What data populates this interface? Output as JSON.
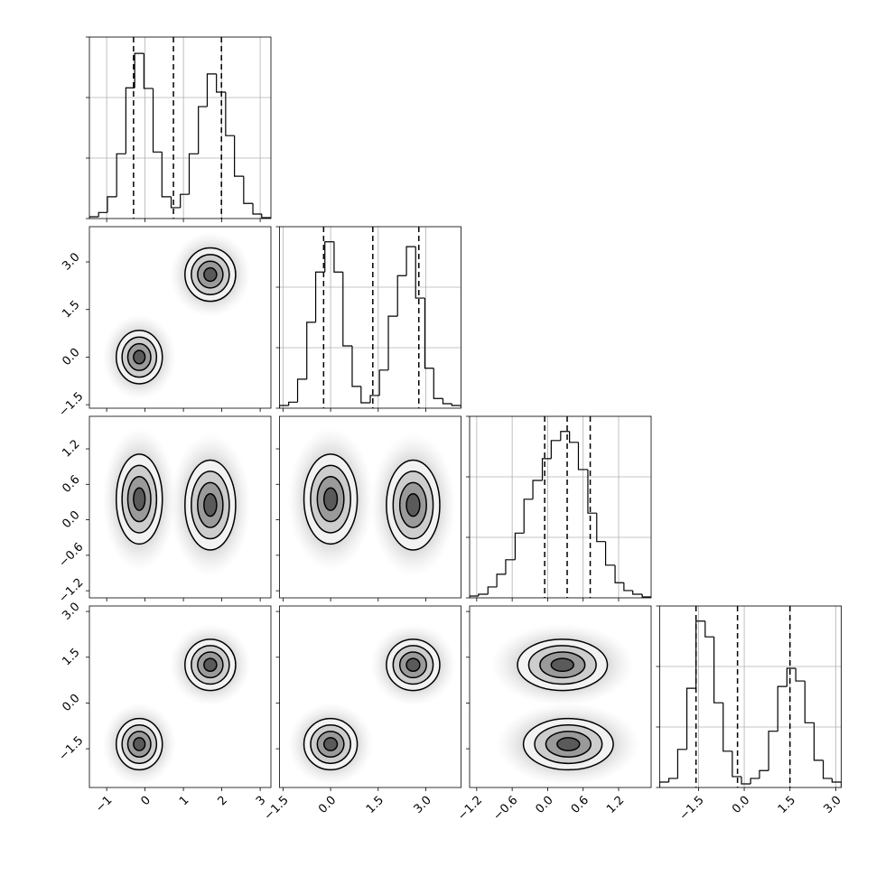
{
  "chart_data": {
    "type": "corner",
    "hist_ylim": [
      0,
      3000
    ],
    "hist_yticks": [
      0,
      1000,
      2000,
      3000
    ],
    "grid": true,
    "levels": [
      0.5,
      1,
      1.5,
      2
    ],
    "components": [
      {
        "mean": [
          -0.15,
          0.0,
          0.35,
          -1.35
        ],
        "sigma": [
          0.3,
          0.42,
          0.38,
          0.42
        ]
      },
      {
        "mean": [
          1.7,
          2.6,
          0.25,
          1.25
        ],
        "sigma": [
          0.33,
          0.42,
          0.38,
          0.42
        ]
      }
    ],
    "params": [
      {
        "lim": [
          -1.45,
          3.28
        ],
        "ticks": [
          {
            "value": -1,
            "label": "−1"
          },
          0,
          1,
          2,
          3
        ],
        "quantiles": [
          -0.3,
          0.74,
          1.99
        ],
        "bins": [
          -1.45,
          -1.21,
          -0.98,
          -0.74,
          -0.5,
          -0.27,
          -0.03,
          0.21,
          0.44,
          0.68,
          0.92,
          1.15,
          1.39,
          1.62,
          1.86,
          2.1,
          2.33,
          2.57,
          2.81,
          3.04,
          3.28
        ],
        "counts": [
          30,
          100,
          360,
          1070,
          2160,
          2730,
          2150,
          1100,
          360,
          180,
          400,
          1070,
          1850,
          2390,
          2090,
          1370,
          700,
          250,
          75,
          15
        ]
      },
      {
        "lim": [
          -1.61,
          4.11
        ],
        "ticks": [
          {
            "value": -1.5,
            "label": "−1.5"
          },
          {
            "value": 0,
            "label": "0.0"
          },
          1.5,
          {
            "value": 3,
            "label": "3.0"
          }
        ],
        "quantiles": [
          -0.22,
          1.33,
          2.78
        ],
        "bins": [
          -1.61,
          -1.32,
          -1.04,
          -0.75,
          -0.47,
          -0.18,
          0.11,
          0.39,
          0.68,
          0.96,
          1.25,
          1.54,
          1.82,
          2.11,
          2.39,
          2.68,
          2.97,
          3.25,
          3.54,
          3.82,
          4.11
        ],
        "counts": [
          45,
          100,
          480,
          1420,
          2250,
          2750,
          2250,
          1030,
          360,
          90,
          210,
          630,
          1520,
          2190,
          2670,
          1820,
          660,
          160,
          75,
          45
        ]
      },
      {
        "lim": [
          -1.32,
          1.75
        ],
        "ticks": [
          {
            "value": -1.2,
            "label": "−1.2"
          },
          {
            "value": -0.6,
            "label": "−0.6"
          },
          {
            "value": 0,
            "label": "0.0"
          },
          0.6,
          1.2
        ],
        "quantiles": [
          -0.05,
          0.33,
          0.72
        ],
        "bins": [
          -1.32,
          -1.17,
          -1.01,
          -0.86,
          -0.71,
          -0.55,
          -0.4,
          -0.25,
          -0.09,
          0.06,
          0.22,
          0.37,
          0.52,
          0.68,
          0.83,
          0.98,
          1.14,
          1.29,
          1.44,
          1.6,
          1.75
        ],
        "counts": [
          30,
          60,
          180,
          390,
          630,
          1070,
          1630,
          1940,
          2300,
          2600,
          2750,
          2570,
          2120,
          1400,
          930,
          540,
          250,
          120,
          60,
          15
        ]
      },
      {
        "lim": [
          -2.77,
          3.18
        ],
        "ticks": [
          {
            "value": -1.5,
            "label": "−1.5"
          },
          {
            "value": 0,
            "label": "0.0"
          },
          1.5,
          {
            "value": 3,
            "label": "3.0"
          }
        ],
        "quantiles": [
          -1.58,
          -0.22,
          1.5
        ],
        "bins": [
          -2.77,
          -2.47,
          -2.18,
          -1.88,
          -1.58,
          -1.28,
          -0.99,
          -0.69,
          -0.39,
          -0.09,
          0.21,
          0.5,
          0.8,
          1.1,
          1.4,
          1.69,
          1.99,
          2.29,
          2.59,
          2.88,
          3.18
        ],
        "counts": [
          90,
          150,
          630,
          1640,
          2750,
          2490,
          1400,
          600,
          180,
          60,
          150,
          280,
          930,
          1670,
          1970,
          1760,
          1070,
          450,
          150,
          90
        ]
      }
    ]
  }
}
